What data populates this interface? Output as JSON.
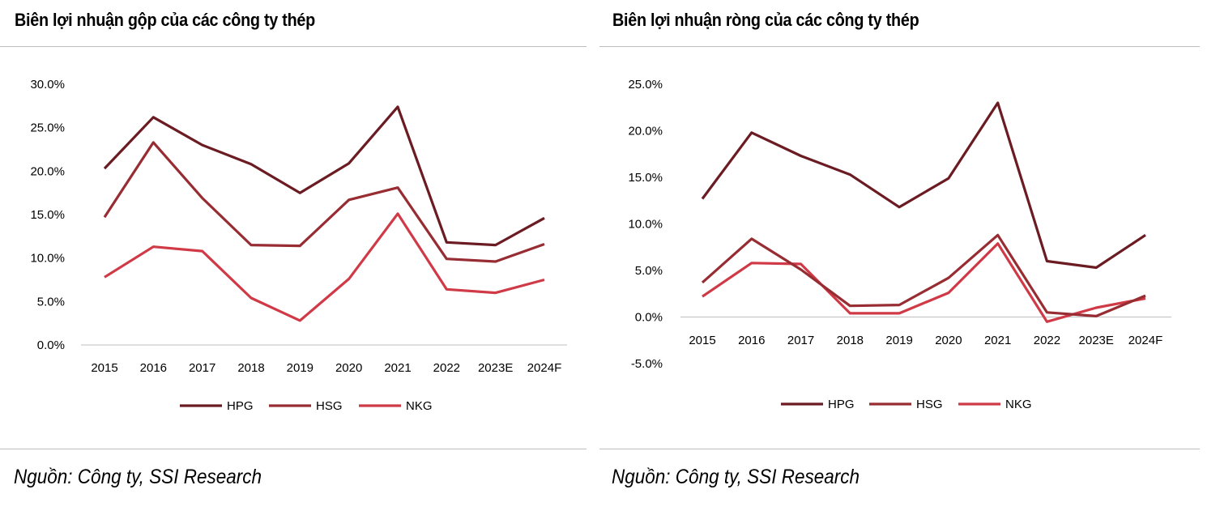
{
  "colors": {
    "HPG": "#6b1b22",
    "HSG": "#972d33",
    "NKG": "#d03a47",
    "rule": "#bdbdbd"
  },
  "left": {
    "title": "Biên lợi nhuận gộp của các công ty thép",
    "source": "Nguồn: Công ty, SSI Research",
    "chart_data": {
      "type": "line",
      "title": "Biên lợi nhuận gộp của các công ty thép",
      "categories": [
        "2015",
        "2016",
        "2017",
        "2018",
        "2019",
        "2020",
        "2021",
        "2022",
        "2023E",
        "2024F"
      ],
      "series": [
        {
          "name": "HPG",
          "values": [
            20.3,
            26.2,
            23.0,
            20.8,
            17.5,
            20.9,
            27.4,
            11.8,
            11.5,
            14.6
          ]
        },
        {
          "name": "HSG",
          "values": [
            14.7,
            23.3,
            16.9,
            11.5,
            11.4,
            16.7,
            18.1,
            9.9,
            9.6,
            11.6
          ]
        },
        {
          "name": "NKG",
          "values": [
            7.8,
            11.3,
            10.8,
            5.4,
            2.8,
            7.6,
            15.1,
            6.4,
            6.0,
            7.5
          ]
        }
      ],
      "yticks": [
        "0.0%",
        "5.0%",
        "10.0%",
        "15.0%",
        "20.0%",
        "25.0%",
        "30.0%"
      ],
      "ylim": [
        0,
        30
      ],
      "legend": [
        "HPG",
        "HSG",
        "NKG"
      ],
      "xlabel": "",
      "ylabel": ""
    }
  },
  "right": {
    "title": "Biên lợi nhuận ròng của các công ty thép",
    "source": "Nguồn: Công ty, SSI Research",
    "chart_data": {
      "type": "line",
      "title": "Biên lợi nhuận ròng của các công ty thép",
      "categories": [
        "2015",
        "2016",
        "2017",
        "2018",
        "2019",
        "2020",
        "2021",
        "2022",
        "2023E",
        "2024F"
      ],
      "series": [
        {
          "name": "HPG",
          "values": [
            12.7,
            19.8,
            17.3,
            15.3,
            11.8,
            14.9,
            23.0,
            6.0,
            5.3,
            8.8
          ]
        },
        {
          "name": "HSG",
          "values": [
            3.7,
            8.4,
            5.1,
            1.2,
            1.3,
            4.2,
            8.8,
            0.5,
            0.1,
            2.3
          ]
        },
        {
          "name": "NKG",
          "values": [
            2.2,
            5.8,
            5.7,
            0.4,
            0.4,
            2.6,
            7.9,
            -0.5,
            1.0,
            2.0
          ]
        }
      ],
      "yticks": [
        "-5.0%",
        "0.0%",
        "5.0%",
        "10.0%",
        "15.0%",
        "20.0%",
        "25.0%"
      ],
      "ylim": [
        -5,
        25
      ],
      "legend": [
        "HPG",
        "HSG",
        "NKG"
      ],
      "xlabel": "",
      "ylabel": ""
    }
  }
}
